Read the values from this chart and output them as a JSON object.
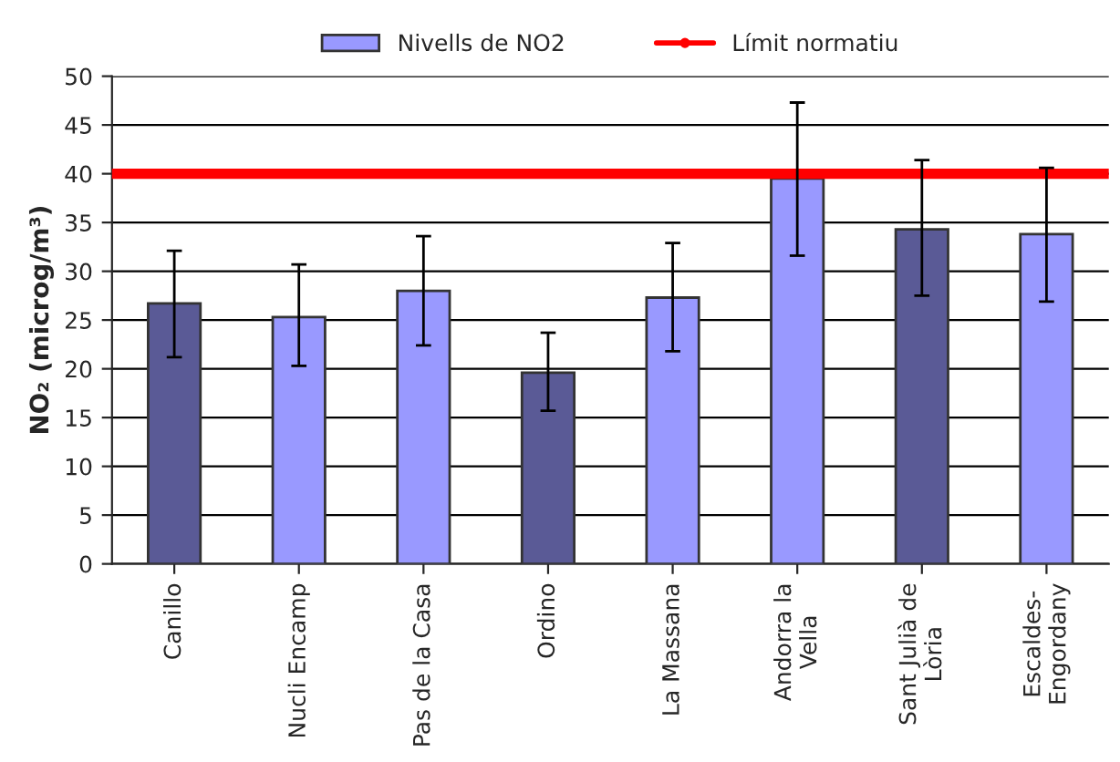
{
  "chart_data": {
    "type": "bar",
    "ylabel": "NO₂ (microg/m³)",
    "categories": [
      "Canillo",
      "Nucli Encamp",
      "Pas de la Casa",
      "Ordino",
      "La Massana",
      "Andorra la\nVella",
      "Sant Julià de\nLòria",
      "Escaldes-\nEngordany"
    ],
    "series": [
      {
        "name": "Nivells de NO2",
        "color": "#9999ff",
        "colors": [
          "#5a5a96",
          "#9999ff",
          "#9999ff",
          "#5a5a96",
          "#9999ff",
          "#9999ff",
          "#5a5a96",
          "#9999ff"
        ],
        "values": [
          26.7,
          25.3,
          28.0,
          19.6,
          27.3,
          39.5,
          34.3,
          33.8
        ],
        "errors": [
          [
            21.2,
            32.1
          ],
          [
            20.3,
            30.7
          ],
          [
            22.4,
            33.6
          ],
          [
            15.7,
            23.7
          ],
          [
            21.8,
            32.9
          ],
          [
            31.6,
            47.3
          ],
          [
            27.5,
            41.4
          ],
          [
            26.9,
            40.6
          ]
        ]
      }
    ],
    "ref_lines": [
      {
        "axis": "y",
        "value": 40,
        "label": "Límit normatiu",
        "color": "#ff0000"
      }
    ],
    "ylim": [
      0,
      50
    ],
    "yticks": [
      0,
      5,
      10,
      15,
      20,
      25,
      30,
      35,
      40,
      45,
      50
    ],
    "grid": "y",
    "legend": "top"
  }
}
